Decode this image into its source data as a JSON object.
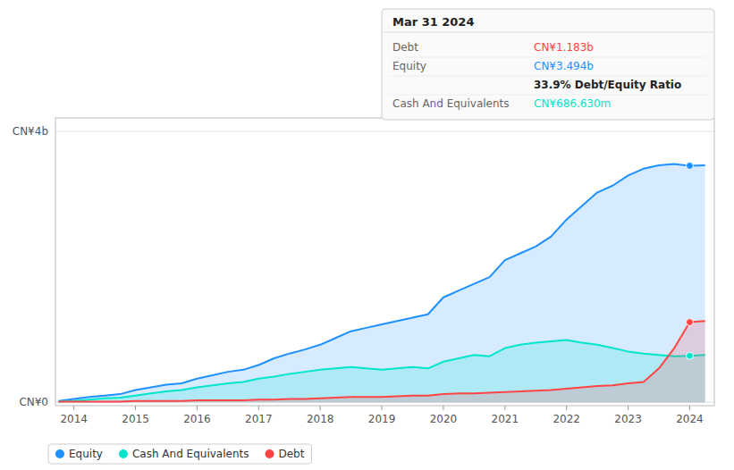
{
  "chart_data": {
    "type": "area",
    "x": [
      2013.75,
      2014.0,
      2014.25,
      2014.5,
      2014.75,
      2015.0,
      2015.25,
      2015.5,
      2015.75,
      2016.0,
      2016.25,
      2016.5,
      2016.75,
      2017.0,
      2017.25,
      2017.5,
      2017.75,
      2018.0,
      2018.25,
      2018.5,
      2018.75,
      2019.0,
      2019.25,
      2019.5,
      2019.75,
      2020.0,
      2020.25,
      2020.5,
      2020.75,
      2021.0,
      2021.25,
      2021.5,
      2021.75,
      2022.0,
      2022.25,
      2022.5,
      2022.75,
      2023.0,
      2023.25,
      2023.5,
      2023.75,
      2024.0,
      2024.25
    ],
    "series": [
      {
        "name": "Equity",
        "color": "#1e90ff",
        "values": [
          0.02,
          0.05,
          0.08,
          0.1,
          0.12,
          0.18,
          0.22,
          0.26,
          0.28,
          0.35,
          0.4,
          0.45,
          0.48,
          0.55,
          0.65,
          0.72,
          0.78,
          0.85,
          0.95,
          1.05,
          1.1,
          1.15,
          1.2,
          1.25,
          1.3,
          1.55,
          1.65,
          1.75,
          1.85,
          2.1,
          2.2,
          2.3,
          2.45,
          2.7,
          2.9,
          3.1,
          3.2,
          3.35,
          3.45,
          3.5,
          3.52,
          3.494,
          3.5
        ]
      },
      {
        "name": "Cash And Equivalents",
        "color": "#00e5cc",
        "values": [
          0.01,
          0.02,
          0.04,
          0.06,
          0.07,
          0.1,
          0.13,
          0.16,
          0.18,
          0.22,
          0.25,
          0.28,
          0.3,
          0.35,
          0.38,
          0.42,
          0.45,
          0.48,
          0.5,
          0.52,
          0.5,
          0.48,
          0.5,
          0.52,
          0.5,
          0.6,
          0.65,
          0.7,
          0.68,
          0.8,
          0.85,
          0.88,
          0.9,
          0.92,
          0.88,
          0.85,
          0.8,
          0.75,
          0.72,
          0.7,
          0.68,
          0.6866,
          0.7
        ]
      },
      {
        "name": "Debt",
        "color": "#ff4444",
        "values": [
          0.01,
          0.01,
          0.01,
          0.01,
          0.01,
          0.02,
          0.02,
          0.02,
          0.02,
          0.03,
          0.03,
          0.03,
          0.03,
          0.04,
          0.04,
          0.05,
          0.05,
          0.06,
          0.07,
          0.08,
          0.08,
          0.08,
          0.09,
          0.1,
          0.1,
          0.12,
          0.13,
          0.13,
          0.14,
          0.15,
          0.16,
          0.17,
          0.18,
          0.2,
          0.22,
          0.24,
          0.25,
          0.28,
          0.3,
          0.5,
          0.8,
          1.183,
          1.2
        ]
      }
    ],
    "xlim": [
      2013.7,
      2024.4
    ],
    "xticks": [
      2014,
      2015,
      2016,
      2017,
      2018,
      2019,
      2020,
      2021,
      2022,
      2023,
      2024
    ],
    "ylim": [
      -0.05,
      4.2
    ],
    "yticks": [
      {
        "value": 0,
        "label": "CN¥0"
      },
      {
        "value": 4.0,
        "label": "CN¥4b"
      }
    ],
    "grid": true,
    "legend": "bottom",
    "annotations": [
      {
        "x": 2024.0,
        "title": "Mar 31 2024",
        "rows": [
          {
            "label": "Debt",
            "value": "CN¥1.183b",
            "color": "#ff4444"
          },
          {
            "label": "Equity",
            "value": "CN¥3.494b",
            "color": "#1e90ff"
          },
          {
            "value": "33.9% Debt/Equity Ratio"
          },
          {
            "label": "Cash And Equivalents",
            "value": "CN¥686.630m",
            "color": "#00e5cc"
          }
        ]
      }
    ]
  }
}
